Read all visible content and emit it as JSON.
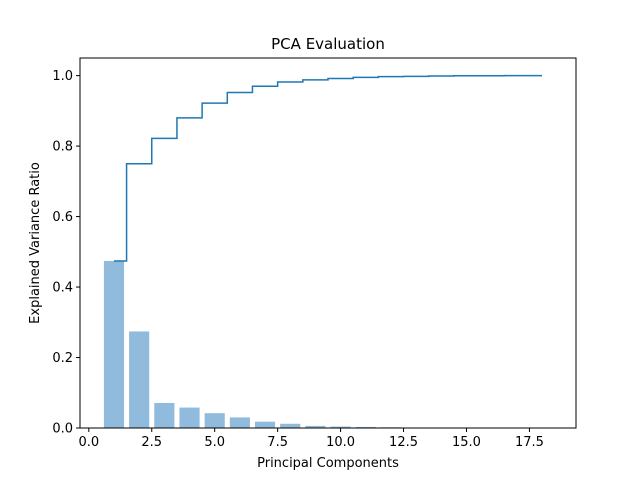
{
  "chart_data": {
    "type": "bar",
    "title": "PCA Evaluation",
    "xlabel": "Principal Components",
    "ylabel": "Explained Variance Ratio",
    "xlim": [
      -0.35,
      19.35
    ],
    "ylim": [
      0,
      1.05
    ],
    "x_ticks": [
      0.0,
      2.5,
      5.0,
      7.5,
      10.0,
      12.5,
      15.0,
      17.5
    ],
    "x_tick_labels": [
      "0.0",
      "2.5",
      "5.0",
      "7.5",
      "10.0",
      "12.5",
      "15.0",
      "17.5"
    ],
    "y_ticks": [
      0.0,
      0.2,
      0.4,
      0.6,
      0.8,
      1.0
    ],
    "y_tick_labels": [
      "0.0",
      "0.2",
      "0.4",
      "0.6",
      "0.8",
      "1.0"
    ],
    "grid": false,
    "series": [
      {
        "type": "bar",
        "color": "#91bbdc",
        "x": [
          1,
          2,
          3,
          4,
          5,
          6,
          7,
          8,
          9,
          10,
          11,
          12,
          13,
          14,
          15,
          16,
          17,
          18
        ],
        "values": [
          0.474,
          0.274,
          0.071,
          0.058,
          0.042,
          0.03,
          0.018,
          0.012,
          0.006,
          0.004,
          0.003,
          0.002,
          0.001,
          0.001,
          0.001,
          0.0005,
          0.0003,
          0.0002
        ]
      },
      {
        "type": "step",
        "color": "#1f77b4",
        "x": [
          1,
          2,
          3,
          4,
          5,
          6,
          7,
          8,
          9,
          10,
          11,
          12,
          13,
          14,
          15,
          16,
          17,
          18
        ],
        "values": [
          0.474,
          0.75,
          0.822,
          0.88,
          0.922,
          0.952,
          0.97,
          0.982,
          0.988,
          0.992,
          0.995,
          0.997,
          0.998,
          0.999,
          0.9995,
          0.9998,
          0.9999,
          1.0
        ]
      }
    ]
  }
}
